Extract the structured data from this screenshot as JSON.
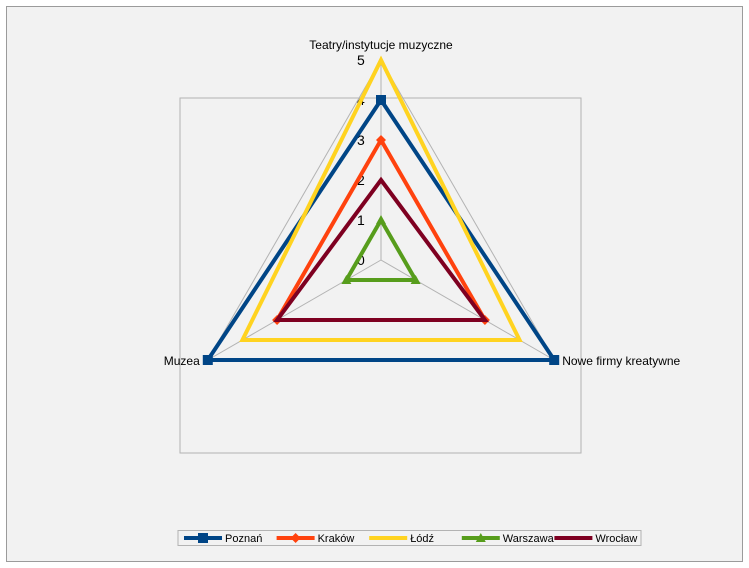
{
  "chart_data": {
    "type": "radar",
    "axes": [
      "Teatry/instytucje muzyczne",
      "Nowe firmy kreatywne",
      "Muzea"
    ],
    "ticks": [
      "0",
      "1",
      "2",
      "3",
      "4",
      "5"
    ],
    "rlim": [
      0,
      5
    ],
    "legend_position": "bottom",
    "series": [
      {
        "name": "Poznań",
        "values": [
          4,
          5,
          5
        ],
        "color": "#004586",
        "marker": "square"
      },
      {
        "name": "Kraków",
        "values": [
          3,
          3,
          3
        ],
        "color": "#ff420e",
        "marker": "diamond"
      },
      {
        "name": "Łódź",
        "values": [
          5,
          4,
          4
        ],
        "color": "#ffd320",
        "marker": "none"
      },
      {
        "name": "Warszawa",
        "values": [
          1,
          1,
          1
        ],
        "color": "#579d1c",
        "marker": "triangle"
      },
      {
        "name": "Wrocław",
        "values": [
          2,
          3,
          3
        ],
        "color": "#7e0021",
        "marker": "none"
      }
    ]
  }
}
